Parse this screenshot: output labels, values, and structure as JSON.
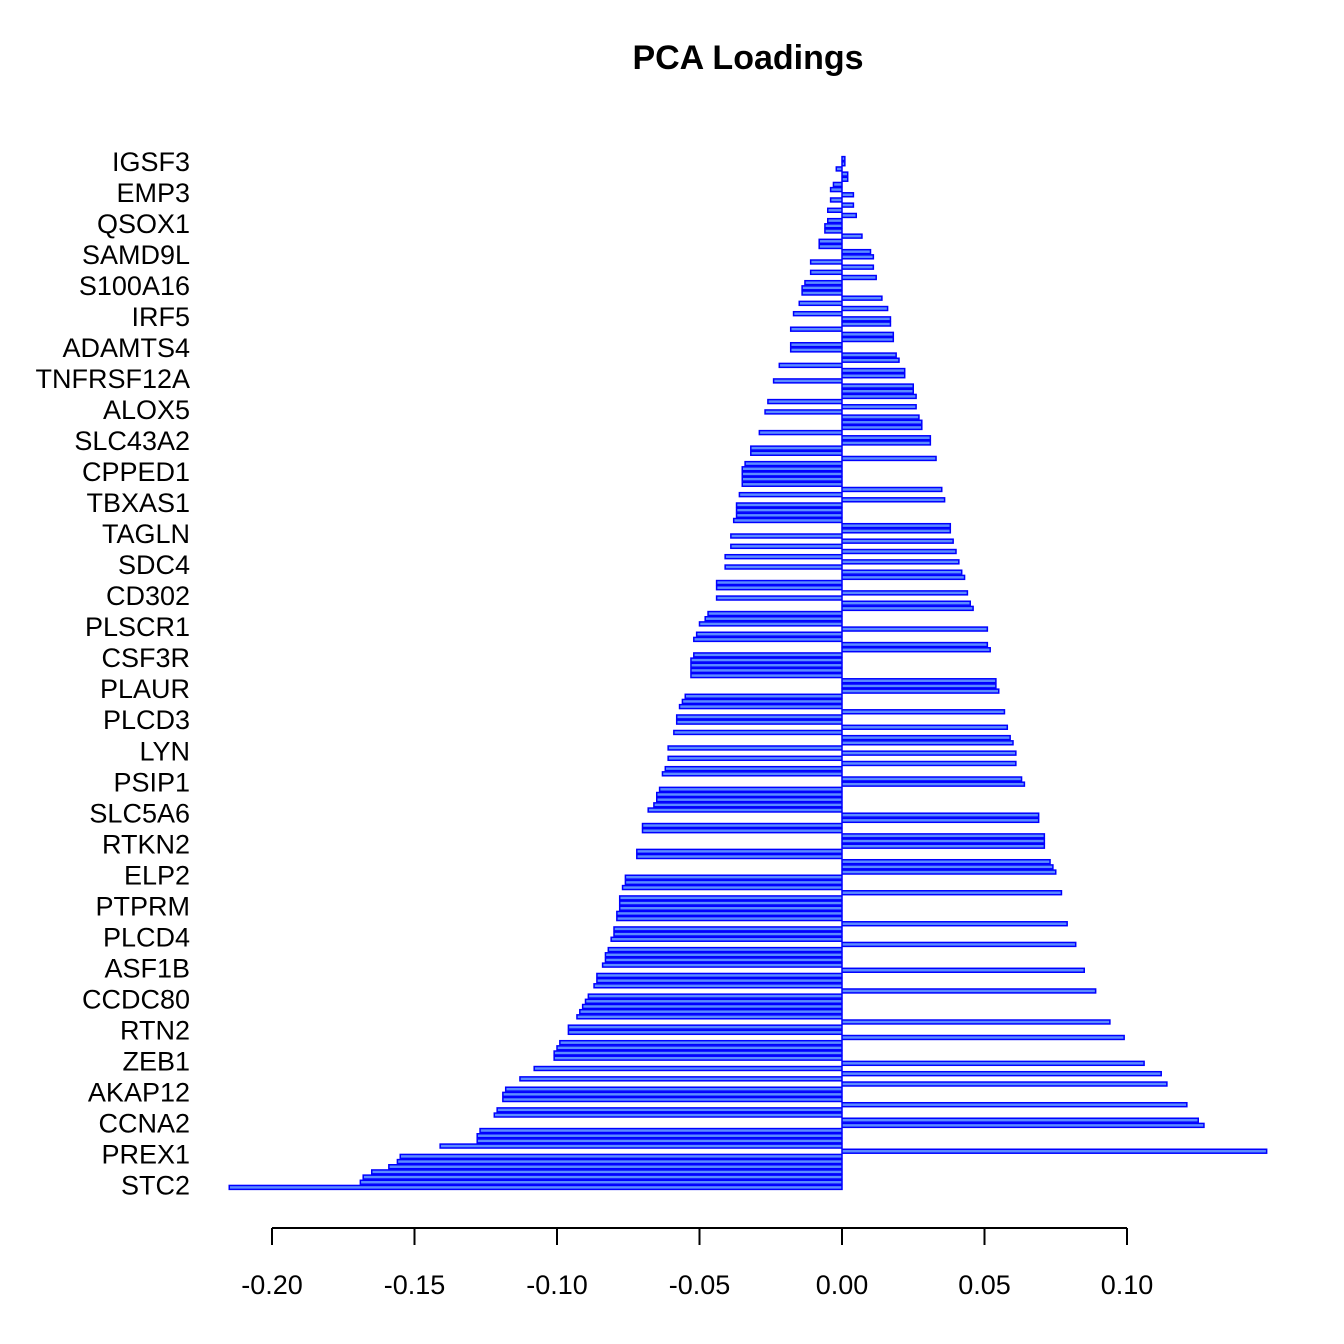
{
  "chart_data": {
    "type": "barh",
    "title": "PCA Loadings",
    "color": "#0000ff",
    "fill": "#5c8cff",
    "xlim": [
      -0.22,
      0.16
    ],
    "xticks": [
      {
        "value": -0.2,
        "label": "-0.20"
      },
      {
        "value": -0.15,
        "label": "-0.15"
      },
      {
        "value": -0.1,
        "label": "-0.10"
      },
      {
        "value": -0.05,
        "label": "-0.05"
      },
      {
        "value": 0,
        "label": "0.00"
      },
      {
        "value": 0.05,
        "label": "0.05"
      },
      {
        "value": 0.1,
        "label": "0.10"
      }
    ],
    "categories": [
      "STC2",
      null,
      null,
      null,
      null,
      null,
      "PREX1",
      null,
      null,
      null,
      null,
      null,
      "CCNA2",
      null,
      null,
      null,
      null,
      null,
      "AKAP12",
      null,
      null,
      null,
      null,
      null,
      "ZEB1",
      null,
      null,
      null,
      null,
      null,
      "RTN2",
      null,
      null,
      null,
      null,
      null,
      "CCDC80",
      null,
      null,
      null,
      null,
      null,
      "ASF1B",
      null,
      null,
      null,
      null,
      null,
      "PLCD4",
      null,
      null,
      null,
      null,
      null,
      "PTPRM",
      null,
      null,
      null,
      null,
      null,
      "ELP2",
      null,
      null,
      null,
      null,
      null,
      "RTKN2",
      null,
      null,
      null,
      null,
      null,
      "SLC5A6",
      null,
      null,
      null,
      null,
      null,
      "PSIP1",
      null,
      null,
      null,
      null,
      null,
      "LYN",
      null,
      null,
      null,
      null,
      null,
      "PLCD3",
      null,
      null,
      null,
      null,
      null,
      "PLAUR",
      null,
      null,
      null,
      null,
      null,
      "CSF3R",
      null,
      null,
      null,
      null,
      null,
      "PLSCR1",
      null,
      null,
      null,
      null,
      null,
      "CD302",
      null,
      null,
      null,
      null,
      null,
      "SDC4",
      null,
      null,
      null,
      null,
      null,
      "TAGLN",
      null,
      null,
      null,
      null,
      null,
      "TBXAS1",
      null,
      null,
      null,
      null,
      null,
      "CPPED1",
      null,
      null,
      null,
      null,
      null,
      "SLC43A2",
      null,
      null,
      null,
      null,
      null,
      "ALOX5",
      null,
      null,
      null,
      null,
      null,
      "TNFRSF12A",
      null,
      null,
      null,
      null,
      null,
      "ADAMTS4",
      null,
      null,
      null,
      null,
      null,
      "IRF5",
      null,
      null,
      null,
      null,
      null,
      "S100A16",
      null,
      null,
      null,
      null,
      null,
      "SAMD9L",
      null,
      null,
      null,
      null,
      null,
      "QSOX1",
      null,
      null,
      null,
      null,
      null,
      "EMP3",
      null,
      null,
      null,
      null,
      null,
      "IGSF3",
      null
    ],
    "values": [
      -0.215,
      -0.169,
      -0.168,
      -0.165,
      -0.159,
      -0.156,
      -0.155,
      0.149,
      -0.141,
      -0.128,
      -0.128,
      -0.127,
      0.127,
      0.125,
      -0.122,
      -0.121,
      0.121,
      -0.119,
      -0.119,
      -0.118,
      0.114,
      -0.113,
      0.112,
      -0.108,
      0.106,
      -0.101,
      -0.101,
      -0.1,
      -0.099,
      0.099,
      -0.096,
      -0.096,
      0.094,
      -0.093,
      -0.092,
      -0.091,
      -0.09,
      -0.089,
      0.089,
      -0.087,
      -0.086,
      -0.086,
      0.085,
      -0.084,
      -0.083,
      -0.083,
      -0.082,
      0.082,
      -0.081,
      -0.08,
      -0.08,
      0.079,
      -0.079,
      -0.079,
      -0.078,
      -0.078,
      -0.078,
      0.077,
      -0.077,
      -0.076,
      -0.076,
      0.075,
      0.074,
      0.073,
      -0.072,
      -0.072,
      0.071,
      0.071,
      0.071,
      -0.07,
      -0.07,
      0.069,
      0.069,
      -0.068,
      -0.066,
      -0.065,
      -0.065,
      -0.064,
      0.064,
      0.063,
      -0.063,
      -0.062,
      0.061,
      -0.061,
      0.061,
      -0.061,
      0.06,
      0.059,
      -0.059,
      0.058,
      -0.058,
      -0.058,
      0.057,
      -0.057,
      -0.056,
      -0.055,
      0.055,
      0.054,
      0.054,
      -0.053,
      -0.053,
      -0.053,
      -0.053,
      -0.052,
      0.052,
      0.051,
      -0.052,
      -0.051,
      0.051,
      -0.05,
      -0.048,
      -0.047,
      0.046,
      0.045,
      -0.044,
      0.044,
      -0.044,
      -0.044,
      0.043,
      0.042,
      -0.041,
      0.041,
      -0.041,
      0.04,
      -0.039,
      0.039,
      -0.039,
      0.038,
      0.038,
      -0.038,
      -0.037,
      -0.037,
      -0.037,
      0.036,
      -0.036,
      0.035,
      -0.035,
      -0.035,
      -0.035,
      -0.035,
      -0.034,
      0.033,
      -0.032,
      -0.032,
      0.031,
      0.031,
      -0.029,
      0.028,
      0.028,
      0.027,
      -0.027,
      0.026,
      -0.026,
      0.026,
      0.025,
      0.025,
      -0.024,
      0.022,
      0.022,
      -0.022,
      0.02,
      0.019,
      -0.018,
      -0.018,
      0.018,
      0.018,
      -0.018,
      0.017,
      0.017,
      -0.017,
      0.016,
      -0.015,
      0.014,
      -0.014,
      -0.014,
      -0.013,
      0.012,
      -0.011,
      0.011,
      -0.011,
      0.011,
      0.01,
      -0.008,
      -0.008,
      0.007,
      -0.006,
      -0.006,
      -0.005,
      0.005,
      -0.005,
      0.004,
      -0.004,
      0.004,
      -0.004,
      -0.003,
      0.002,
      0.002,
      -0.002,
      0.001,
      0.001
    ]
  }
}
